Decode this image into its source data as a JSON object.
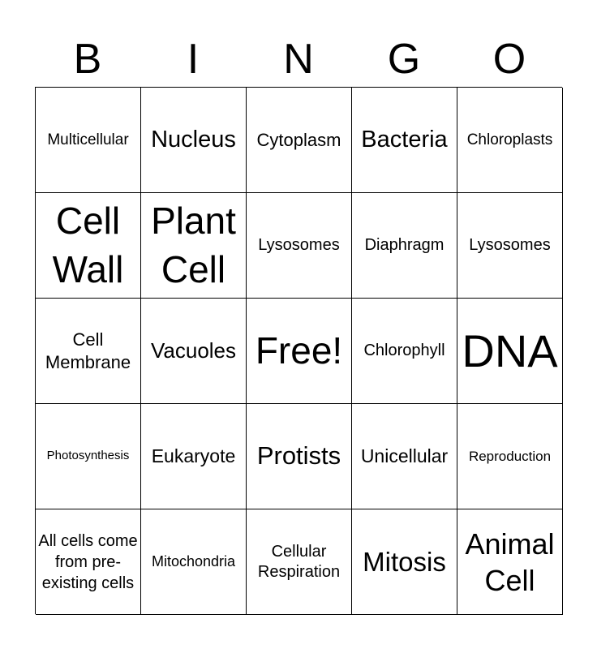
{
  "header": [
    "B",
    "I",
    "N",
    "G",
    "O"
  ],
  "cells": [
    "Multicellular",
    "Nucleus",
    "Cytoplasm",
    "Bacteria",
    "Chloroplasts",
    "Cell Wall",
    "Plant Cell",
    "Lysosomes",
    "Diaphragm",
    "Lysosomes",
    "Cell Membrane",
    "Vacuoles",
    "Free!",
    "Chlorophyll",
    "DNA",
    "Photosynthesis",
    "Eukaryote",
    "Protists",
    "Unicellular",
    "Reproduction",
    "All cells come from pre-existing cells",
    "Mitochondria",
    "Cellular Respiration",
    "Mitosis",
    "Animal Cell"
  ]
}
